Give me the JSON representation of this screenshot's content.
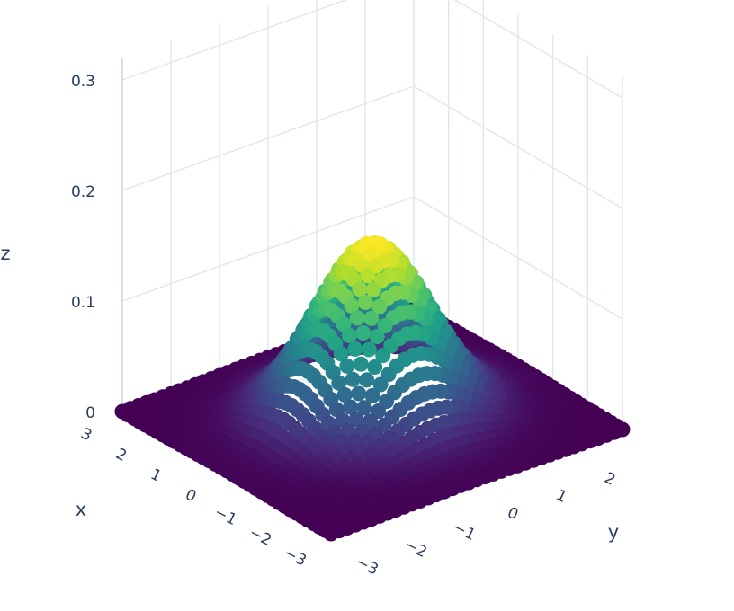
{
  "chart_data": {
    "type": "scatter3d",
    "surface_function": "exp(-(x^2+y^2)/2)/(2*pi)",
    "x_range": [
      -3,
      3
    ],
    "y_range": [
      -3,
      3
    ],
    "z_range": [
      0,
      0.32
    ],
    "grid_points": 37,
    "colorscale": "viridis",
    "colors": [
      "#440154",
      "#482878",
      "#3e4989",
      "#31688e",
      "#26828e",
      "#1f9e89",
      "#35b779",
      "#6ece58",
      "#b5de2b",
      "#fde725"
    ],
    "gridlines": true,
    "axes": {
      "x": {
        "title": "x",
        "ticks": [
          "−3",
          "−2",
          "−1",
          "0",
          "1",
          "2",
          "3"
        ],
        "tick_values": [
          -3,
          -2,
          -1,
          0,
          1,
          2,
          3
        ]
      },
      "y": {
        "title": "y",
        "ticks": [
          "2",
          "1",
          "0",
          "−1",
          "−2",
          "−3"
        ],
        "tick_values": [
          2,
          1,
          0,
          -1,
          -2,
          -3
        ]
      },
      "z": {
        "title": "z",
        "ticks": [
          "0",
          "0.1",
          "0.2",
          "0.3"
        ],
        "tick_values": [
          0,
          0.1,
          0.2,
          0.3
        ]
      }
    }
  }
}
